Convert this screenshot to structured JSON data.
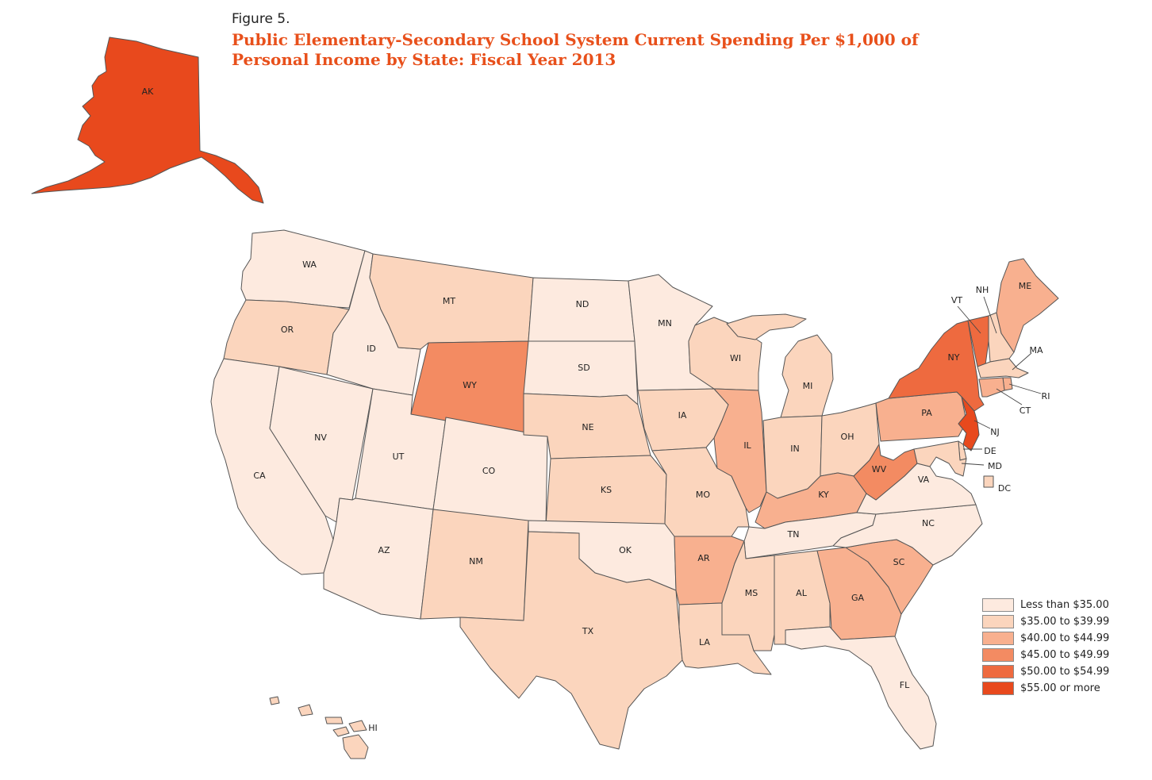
{
  "figure_label": "Figure 5.",
  "title": "Public Elementary-Secondary School System Current Spending Per $1,000 of Personal Income by State: Fiscal Year 2013",
  "legend": [
    {
      "label": "Less than $35.00",
      "color": "#fdeadf"
    },
    {
      "label": "$35.00 to $39.99",
      "color": "#fbd5bd"
    },
    {
      "label": "$40.00 to $44.99",
      "color": "#f8b08f"
    },
    {
      "label": "$45.00 to $49.99",
      "color": "#f38b62"
    },
    {
      "label": "$50.00 to $54.99",
      "color": "#ee6a3f"
    },
    {
      "label": "$55.00 or more",
      "color": "#e8491d"
    }
  ],
  "states": [
    {
      "abbr": "AK",
      "class": 5
    },
    {
      "abbr": "WA",
      "class": 0
    },
    {
      "abbr": "OR",
      "class": 1
    },
    {
      "abbr": "CA",
      "class": 0
    },
    {
      "abbr": "ID",
      "class": 0
    },
    {
      "abbr": "NV",
      "class": 0
    },
    {
      "abbr": "UT",
      "class": 0
    },
    {
      "abbr": "AZ",
      "class": 0
    },
    {
      "abbr": "MT",
      "class": 1
    },
    {
      "abbr": "WY",
      "class": 3
    },
    {
      "abbr": "CO",
      "class": 0
    },
    {
      "abbr": "NM",
      "class": 1
    },
    {
      "abbr": "ND",
      "class": 0
    },
    {
      "abbr": "SD",
      "class": 0
    },
    {
      "abbr": "NE",
      "class": 1
    },
    {
      "abbr": "KS",
      "class": 1
    },
    {
      "abbr": "OK",
      "class": 0
    },
    {
      "abbr": "TX",
      "class": 1
    },
    {
      "abbr": "MN",
      "class": 0
    },
    {
      "abbr": "IA",
      "class": 1
    },
    {
      "abbr": "MO",
      "class": 1
    },
    {
      "abbr": "AR",
      "class": 2
    },
    {
      "abbr": "LA",
      "class": 1
    },
    {
      "abbr": "WI",
      "class": 1
    },
    {
      "abbr": "IL",
      "class": 2
    },
    {
      "abbr": "MI",
      "class": 1
    },
    {
      "abbr": "IN",
      "class": 1
    },
    {
      "abbr": "OH",
      "class": 1
    },
    {
      "abbr": "KY",
      "class": 2
    },
    {
      "abbr": "TN",
      "class": 0
    },
    {
      "abbr": "MS",
      "class": 1
    },
    {
      "abbr": "AL",
      "class": 1
    },
    {
      "abbr": "GA",
      "class": 2
    },
    {
      "abbr": "FL",
      "class": 0
    },
    {
      "abbr": "SC",
      "class": 2
    },
    {
      "abbr": "NC",
      "class": 0
    },
    {
      "abbr": "VA",
      "class": 0
    },
    {
      "abbr": "WV",
      "class": 3
    },
    {
      "abbr": "PA",
      "class": 2
    },
    {
      "abbr": "NY",
      "class": 4
    },
    {
      "abbr": "VT",
      "class": 4
    },
    {
      "abbr": "NH",
      "class": 1
    },
    {
      "abbr": "ME",
      "class": 2
    },
    {
      "abbr": "MA",
      "class": 1
    },
    {
      "abbr": "RI",
      "class": 2
    },
    {
      "abbr": "CT",
      "class": 2
    },
    {
      "abbr": "NJ",
      "class": 5
    },
    {
      "abbr": "DE",
      "class": 1
    },
    {
      "abbr": "MD",
      "class": 1
    },
    {
      "abbr": "DC",
      "class": 1
    },
    {
      "abbr": "HI",
      "class": 1
    }
  ]
}
